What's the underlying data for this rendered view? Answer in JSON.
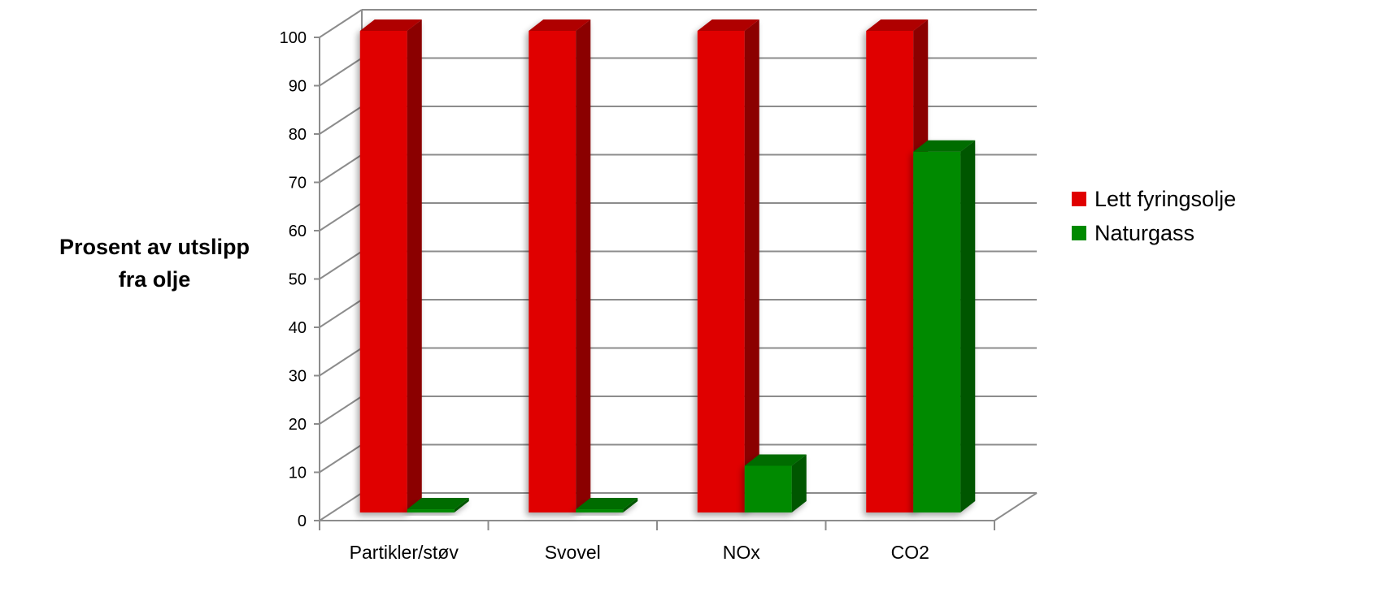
{
  "chart_data": {
    "type": "bar",
    "title": "",
    "ylabel": "Prosent av utslipp fra olje",
    "xlabel": "",
    "categories": [
      "Partikler/støv",
      "Svovel",
      "NOx",
      "CO2"
    ],
    "series": [
      {
        "name": "Lett fyringsolje",
        "values": [
          100,
          100,
          100,
          100
        ],
        "color": "#e00000"
      },
      {
        "name": "Naturgass",
        "values": [
          1,
          1,
          10,
          75
        ],
        "color": "#008a00"
      }
    ],
    "ylim": [
      0,
      100
    ],
    "yticks": [
      0,
      10,
      20,
      30,
      40,
      50,
      60,
      70,
      80,
      90,
      100
    ],
    "grid": true,
    "legend_position": "right",
    "style": "3d-clustered-column"
  }
}
